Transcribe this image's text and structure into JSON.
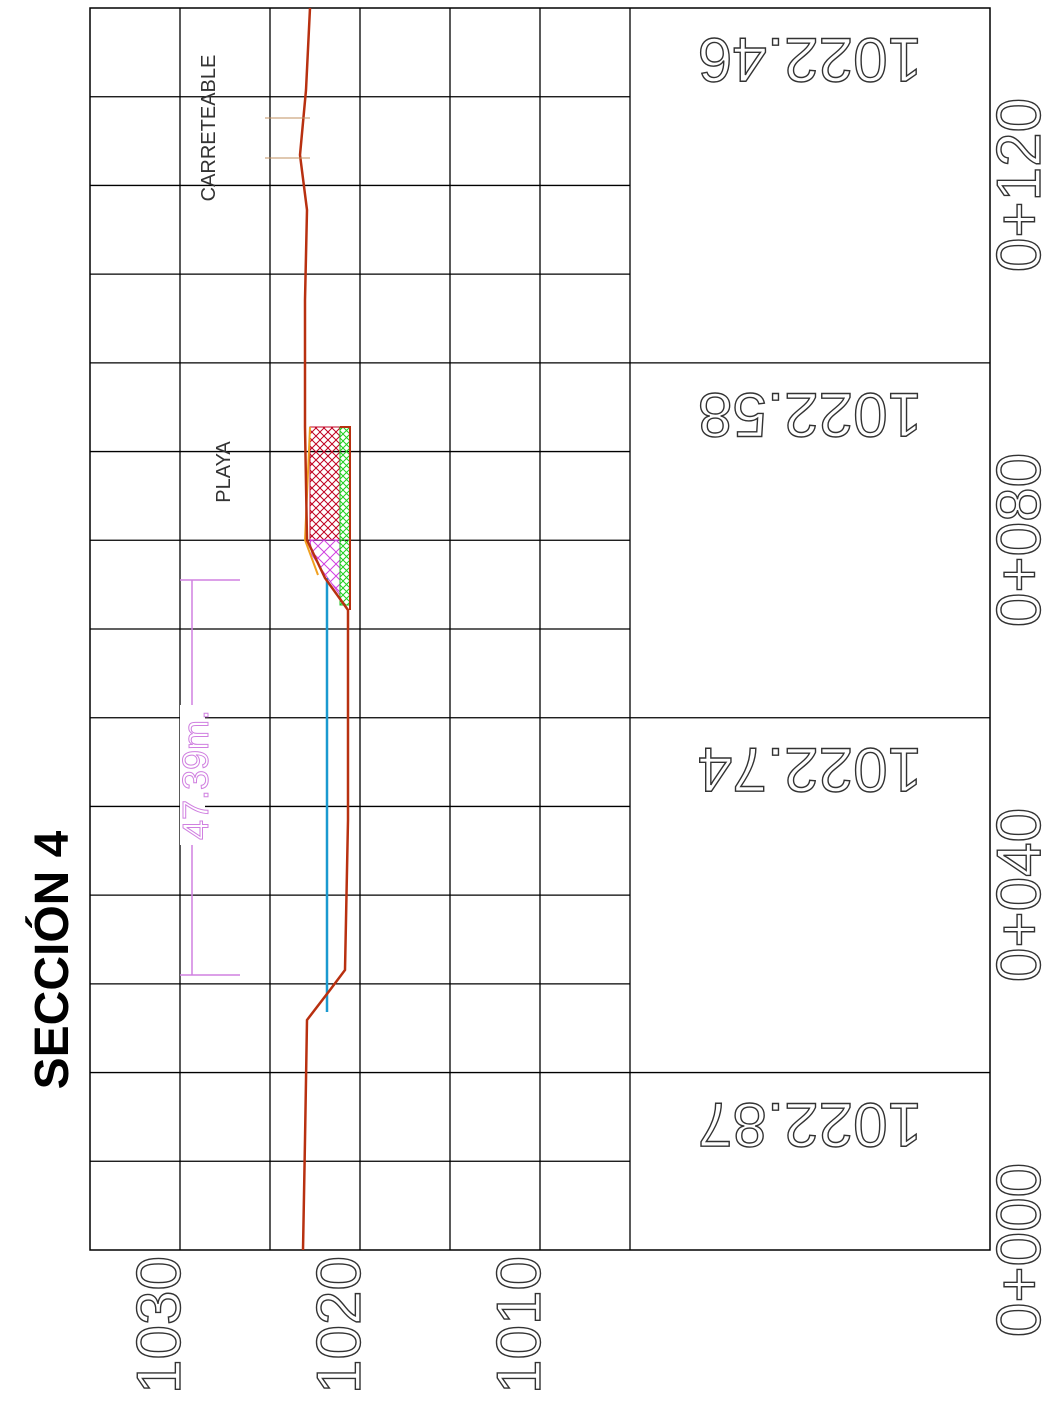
{
  "title": "SECCIÓN 4",
  "labels": {
    "road": "CARRETEABLE",
    "beach": "PLAYA",
    "dimension": "47.39m."
  },
  "elevation_axis": [
    "1030",
    "1020",
    "1010"
  ],
  "stations": [
    "0+000",
    "0+040",
    "0+080",
    "0+120"
  ],
  "ground_elevations": [
    "1022.87",
    "1022.74",
    "1022.58",
    "1022.46"
  ]
}
